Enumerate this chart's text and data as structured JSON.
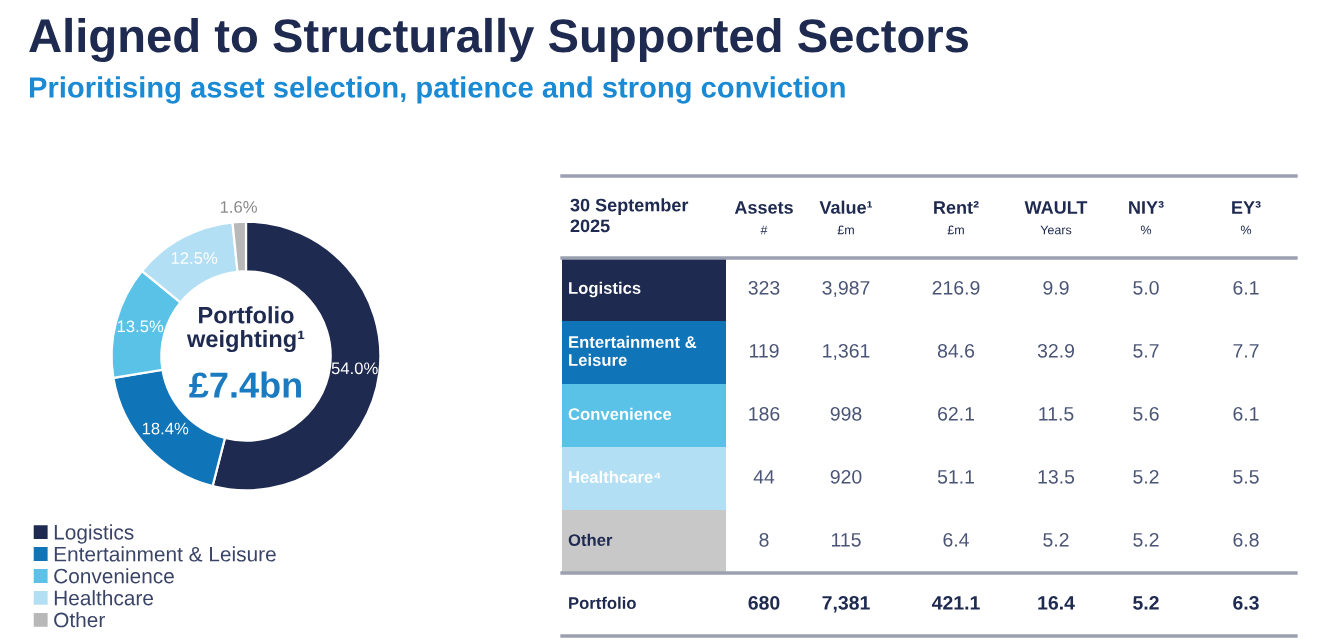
{
  "chart_data": [
    {
      "type": "donut",
      "title": "Aligned to Structurally Supported Sectors",
      "subtitle": "Prioritising asset selection, patience and strong conviction",
      "categories": [
        "Logistics",
        "Entertainment & Leisure",
        "Convenience",
        "Healthcare",
        "Other"
      ],
      "values": [
        54.0,
        18.4,
        13.5,
        12.5,
        1.6
      ],
      "colors": [
        "#1f2a50",
        "#0f75b8",
        "#5bc2e7",
        "#b3dff4",
        "#b8b8b8"
      ],
      "value_labels": [
        "54.0%",
        "18.4%",
        "13.5%",
        "12.5%",
        "1.6%"
      ],
      "annotations": [
        "Portfolio\nweighting¹",
        "£7.4bn"
      ],
      "legend": "bottom left"
    },
    {
      "type": "other",
      "title": "30 September\n2025",
      "categories": [
        "Assets\n#",
        "Value¹\n£m",
        "Rent²\n£m",
        "WAULT\nYears",
        "NIY³\n%",
        "EY³\n%"
      ],
      "y_categories": [
        "Logistics",
        "Entertainment &\nLeisure",
        "Convenience",
        "Healthcare⁴",
        "Other",
        "Portfolio"
      ],
      "colors": [
        "#1f2a50",
        "#0f75b8",
        "#5bc2e7",
        "#b3dff4",
        "#c8c8c8",
        "#ffffff"
      ],
      "cell_labels": [
        [
          "323",
          "3,987",
          "216.9",
          "9.9",
          "5.0",
          "6.1"
        ],
        [
          "119",
          "1,361",
          "84.6",
          "32.9",
          "5.7",
          "7.7"
        ],
        [
          "186",
          "998",
          "62.1",
          "11.5",
          "5.6",
          "6.1"
        ],
        [
          "44",
          "920",
          "51.1",
          "13.5",
          "5.2",
          "5.5"
        ],
        [
          "8",
          "115",
          "6.4",
          "5.2",
          "5.2",
          "6.8"
        ],
        [
          "680",
          "7,381",
          "421.1",
          "16.4",
          "5.2",
          "6.3"
        ]
      ]
    }
  ]
}
